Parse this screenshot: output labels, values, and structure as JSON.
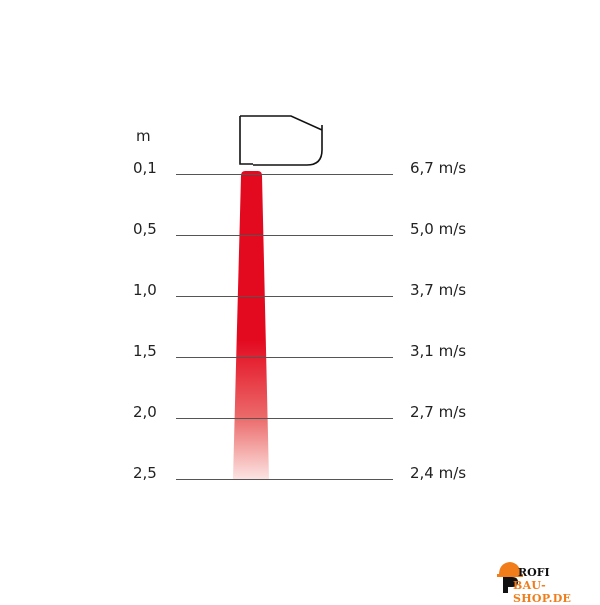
{
  "unit_label": "m",
  "rows": [
    {
      "distance": "0,1",
      "speed": "6,7 m/s"
    },
    {
      "distance": "0,5",
      "speed": "5,0 m/s"
    },
    {
      "distance": "1,0",
      "speed": "3,7 m/s"
    },
    {
      "distance": "1,5",
      "speed": "3,1 m/s"
    },
    {
      "distance": "2,0",
      "speed": "2,7 m/s"
    },
    {
      "distance": "2,5",
      "speed": "2,4 m/s"
    }
  ],
  "colors": {
    "beam": "#e30a20",
    "logo_orange": "#f07d1a"
  },
  "logo": {
    "line1": "PROFI",
    "line2": "BAU-SHOP.DE"
  }
}
